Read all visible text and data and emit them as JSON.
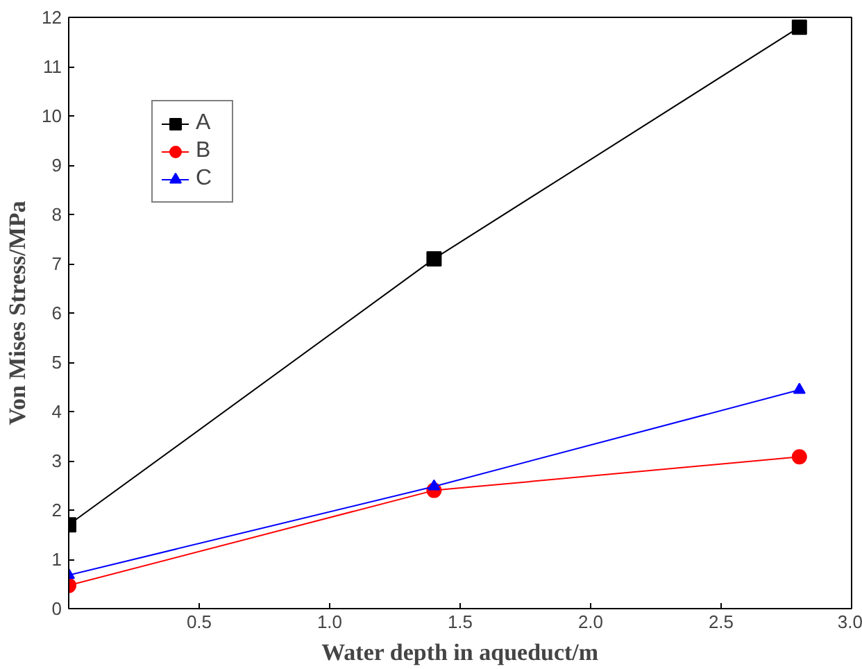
{
  "chart_data": {
    "type": "line",
    "xlabel": "Water depth in aqueduct/m",
    "ylabel": "Von Mises Stress/MPa",
    "x": [
      0,
      1.4,
      2.8
    ],
    "series": [
      {
        "name": "A",
        "color": "#000000",
        "marker": "square",
        "values": [
          1.7,
          7.1,
          11.8
        ]
      },
      {
        "name": "B",
        "color": "#ff0000",
        "marker": "circle",
        "values": [
          0.47,
          2.4,
          3.08
        ]
      },
      {
        "name": "C",
        "color": "#0000ff",
        "marker": "triangle",
        "values": [
          0.68,
          2.48,
          4.44
        ]
      }
    ],
    "xlim": [
      0,
      3.0
    ],
    "xticks": [
      {
        "value": 0,
        "label": null
      },
      {
        "value": 0.5,
        "label": "0.5"
      },
      {
        "value": 1.0,
        "label": "1.0"
      },
      {
        "value": 1.5,
        "label": "1.5"
      },
      {
        "value": 2.0,
        "label": "2.0"
      },
      {
        "value": 2.5,
        "label": "2.5"
      },
      {
        "value": 3.0,
        "label": "3.0"
      }
    ],
    "ylim": [
      0,
      12
    ],
    "yticks": [
      0,
      1,
      2,
      3,
      4,
      5,
      6,
      7,
      8,
      9,
      10,
      11,
      12
    ],
    "grid": false,
    "legend": "top left",
    "line_style": "solid"
  }
}
